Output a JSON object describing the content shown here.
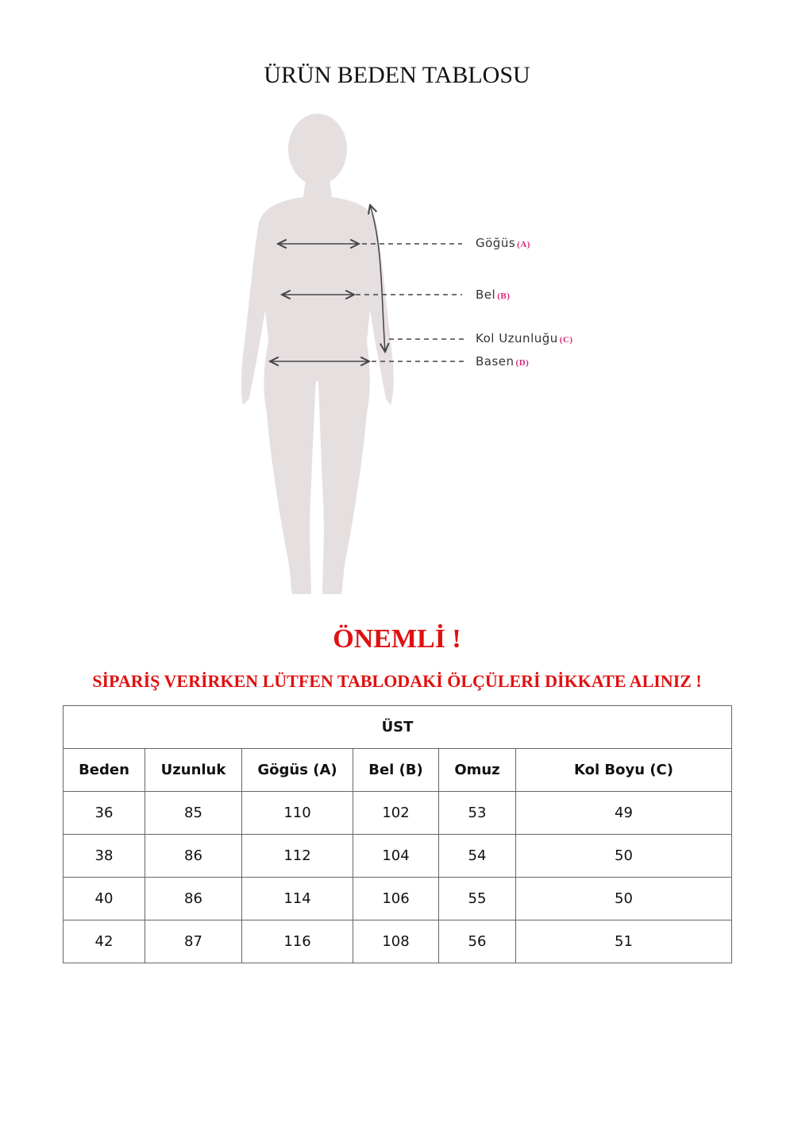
{
  "title": "ÜRÜN BEDEN TABLOSU",
  "figure": {
    "labels": [
      {
        "text": "Göğüs",
        "key": "(A)"
      },
      {
        "text": "Bel",
        "key": "(B)"
      },
      {
        "text": "Kol Uzunluğu",
        "key": "(C)"
      },
      {
        "text": "Basen",
        "key": "(D)"
      }
    ]
  },
  "notice": {
    "heading": "ÖNEMLİ !",
    "text": "SİPARİŞ VERİRKEN LÜTFEN TABLODAKİ ÖLÇÜLERİ DİKKATE ALINIZ !"
  },
  "table": {
    "section": "ÜST",
    "headers": [
      "Beden",
      "Uzunluk",
      "Gögüs (A)",
      "Bel (B)",
      "Omuz",
      "Kol Boyu (C)"
    ],
    "rows": [
      [
        "36",
        "85",
        "110",
        "102",
        "53",
        "49"
      ],
      [
        "38",
        "86",
        "112",
        "104",
        "54",
        "50"
      ],
      [
        "40",
        "86",
        "114",
        "106",
        "55",
        "50"
      ],
      [
        "42",
        "87",
        "116",
        "108",
        "56",
        "51"
      ]
    ]
  },
  "colors": {
    "accent_red": "#e01010",
    "key_pink": "#d6247a",
    "silhouette": "#e6dfe0"
  }
}
